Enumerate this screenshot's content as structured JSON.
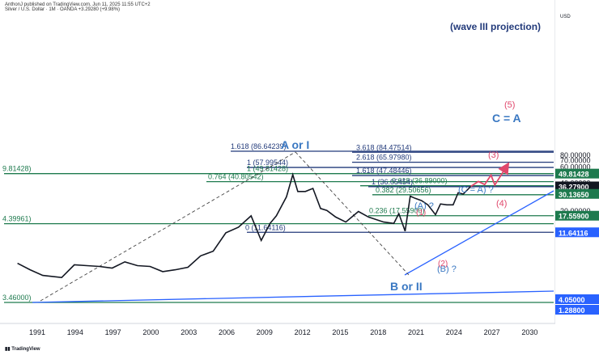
{
  "header": {
    "line1": "AnthonJ published on TradingView.com, Jun 11, 2025 11:55 UTC+2",
    "line2": "Silver / U.S. Dollar · 1M · OANDA  +3.29280 (+9.98%)"
  },
  "footer": {
    "brand": "TradingView"
  },
  "chart_data": {
    "type": "line",
    "title": "",
    "currency": "USD",
    "x_ticks": [
      "1991",
      "1994",
      "1997",
      "2000",
      "2003",
      "2006",
      "2009",
      "2012",
      "2015",
      "2018",
      "2021",
      "2024",
      "2027",
      "2030"
    ],
    "y_scale": "log",
    "y_ticks": [
      "20.00000",
      "40.00000",
      "60.00000",
      "70.00000",
      "80.00000"
    ],
    "y_ticks_values": [
      20,
      40,
      60,
      70,
      80
    ],
    "price_badges": [
      {
        "label": "49.81428",
        "value": 49.81428,
        "color": "#1e7a4e"
      },
      {
        "label": "36.27900",
        "value": 36.279,
        "color": "#131722"
      },
      {
        "label": "30.13650",
        "value": 30.1365,
        "color": "#1e7a4e"
      },
      {
        "label": "17.55900",
        "value": 17.559,
        "color": "#1e7a4e"
      },
      {
        "label": "11.64116",
        "value": 11.64116,
        "color": "#2962ff"
      },
      {
        "label": "4.05000",
        "value": 4.05,
        "color": "#2962ff"
      },
      {
        "label": "1.28800",
        "value": 1.288,
        "color": "#2962ff"
      }
    ],
    "levels": [
      {
        "label": "1.618 (86.64239)",
        "value": 86.64239,
        "color": "#223a7a"
      },
      {
        "label": "3.618 (84.47514)",
        "value": 84.47514,
        "color": "#223a7a"
      },
      {
        "label": "2.618 (65.97980)",
        "value": 65.9798,
        "color": "#223a7a"
      },
      {
        "label": "1 (57.99544)",
        "value": 57.99544,
        "color": "#223a7a"
      },
      {
        "label": "1 (49.81428)",
        "value": 49.81428,
        "color": "#1e7a4e"
      },
      {
        "label": "1.618 (47.48446)",
        "value": 47.48446,
        "color": "#223a7a"
      },
      {
        "label": "0.764 (40.80542)",
        "value": 40.80542,
        "color": "#1e7a4e"
      },
      {
        "label": "0.618 (36.89000)",
        "value": 36.89,
        "color": "#1e7a4e"
      },
      {
        "label": "1 (36.05454)",
        "value": 36.05454,
        "color": "#223a7a"
      },
      {
        "label": "0.382 (29.50656)",
        "value": 29.50656,
        "color": "#1e7a4e"
      },
      {
        "label": "0.236 (17.55900)",
        "value": 17.559,
        "color": "#1e7a4e"
      },
      {
        "label": "0 (11.64116)",
        "value": 11.64116,
        "color": "#223a7a"
      }
    ],
    "left_labels": [
      {
        "label": "9.81428)",
        "value": 49.81428
      },
      {
        "label": "4.39961)",
        "value": 14.39961
      },
      {
        "label": "3.46000)",
        "value": 3.46
      }
    ],
    "wave_labels": {
      "a_or_i": "A or I",
      "b_or_ii": "B or II",
      "c_eq_a": "C = A",
      "wave3_projection": "(wave III projection)",
      "a_q": "(A) ?",
      "b_q": "(B) ?",
      "c_eq_a_q": "(C = A) ?",
      "w1": "(1)",
      "w2": "(2)",
      "w3": "(3)",
      "w4": "(4)",
      "w5": "(5)"
    },
    "price_path": [
      [
        1989.5,
        5.4
      ],
      [
        1990.5,
        4.6
      ],
      [
        1991.5,
        4.0
      ],
      [
        1993,
        3.8
      ],
      [
        1994,
        5.2
      ],
      [
        1995,
        5.1
      ],
      [
        1996,
        5.0
      ],
      [
        1997,
        4.8
      ],
      [
        1998,
        5.6
      ],
      [
        1999,
        5.1
      ],
      [
        2000,
        5.0
      ],
      [
        2001,
        4.4
      ],
      [
        2002,
        4.6
      ],
      [
        2003,
        4.9
      ],
      [
        2004,
        6.5
      ],
      [
        2005,
        7.3
      ],
      [
        2006,
        11.5
      ],
      [
        2007,
        13.2
      ],
      [
        2008,
        17.5
      ],
      [
        2008.8,
        9.5
      ],
      [
        2009.5,
        14.5
      ],
      [
        2010,
        17.5
      ],
      [
        2010.8,
        28.0
      ],
      [
        2011.3,
        48.5
      ],
      [
        2011.7,
        32.0
      ],
      [
        2012.3,
        32.0
      ],
      [
        2012.9,
        34.5
      ],
      [
        2013.5,
        21.0
      ],
      [
        2014,
        20.0
      ],
      [
        2014.7,
        17.0
      ],
      [
        2015.5,
        15.0
      ],
      [
        2016.5,
        19.5
      ],
      [
        2017.3,
        17.0
      ],
      [
        2018.5,
        15.0
      ],
      [
        2019.3,
        14.5
      ],
      [
        2019.7,
        18.5
      ],
      [
        2020.2,
        12.0
      ],
      [
        2020.6,
        28.5
      ],
      [
        2021.0,
        27.0
      ],
      [
        2021.5,
        25.5
      ],
      [
        2022.0,
        23.0
      ],
      [
        2022.6,
        18.0
      ],
      [
        2023.0,
        23.5
      ],
      [
        2023.5,
        23.0
      ],
      [
        2024.0,
        23.0
      ],
      [
        2024.4,
        31.0
      ],
      [
        2024.8,
        30.0
      ],
      [
        2025.4,
        36.3
      ]
    ],
    "projection_path": [
      [
        2025.4,
        36.3
      ],
      [
        2026.0,
        41.0
      ],
      [
        2026.5,
        38.0
      ],
      [
        2027.0,
        48.0
      ],
      [
        2027.3,
        37.5
      ],
      [
        2028.2,
        58.5
      ]
    ],
    "grid": false,
    "legend": "none"
  }
}
